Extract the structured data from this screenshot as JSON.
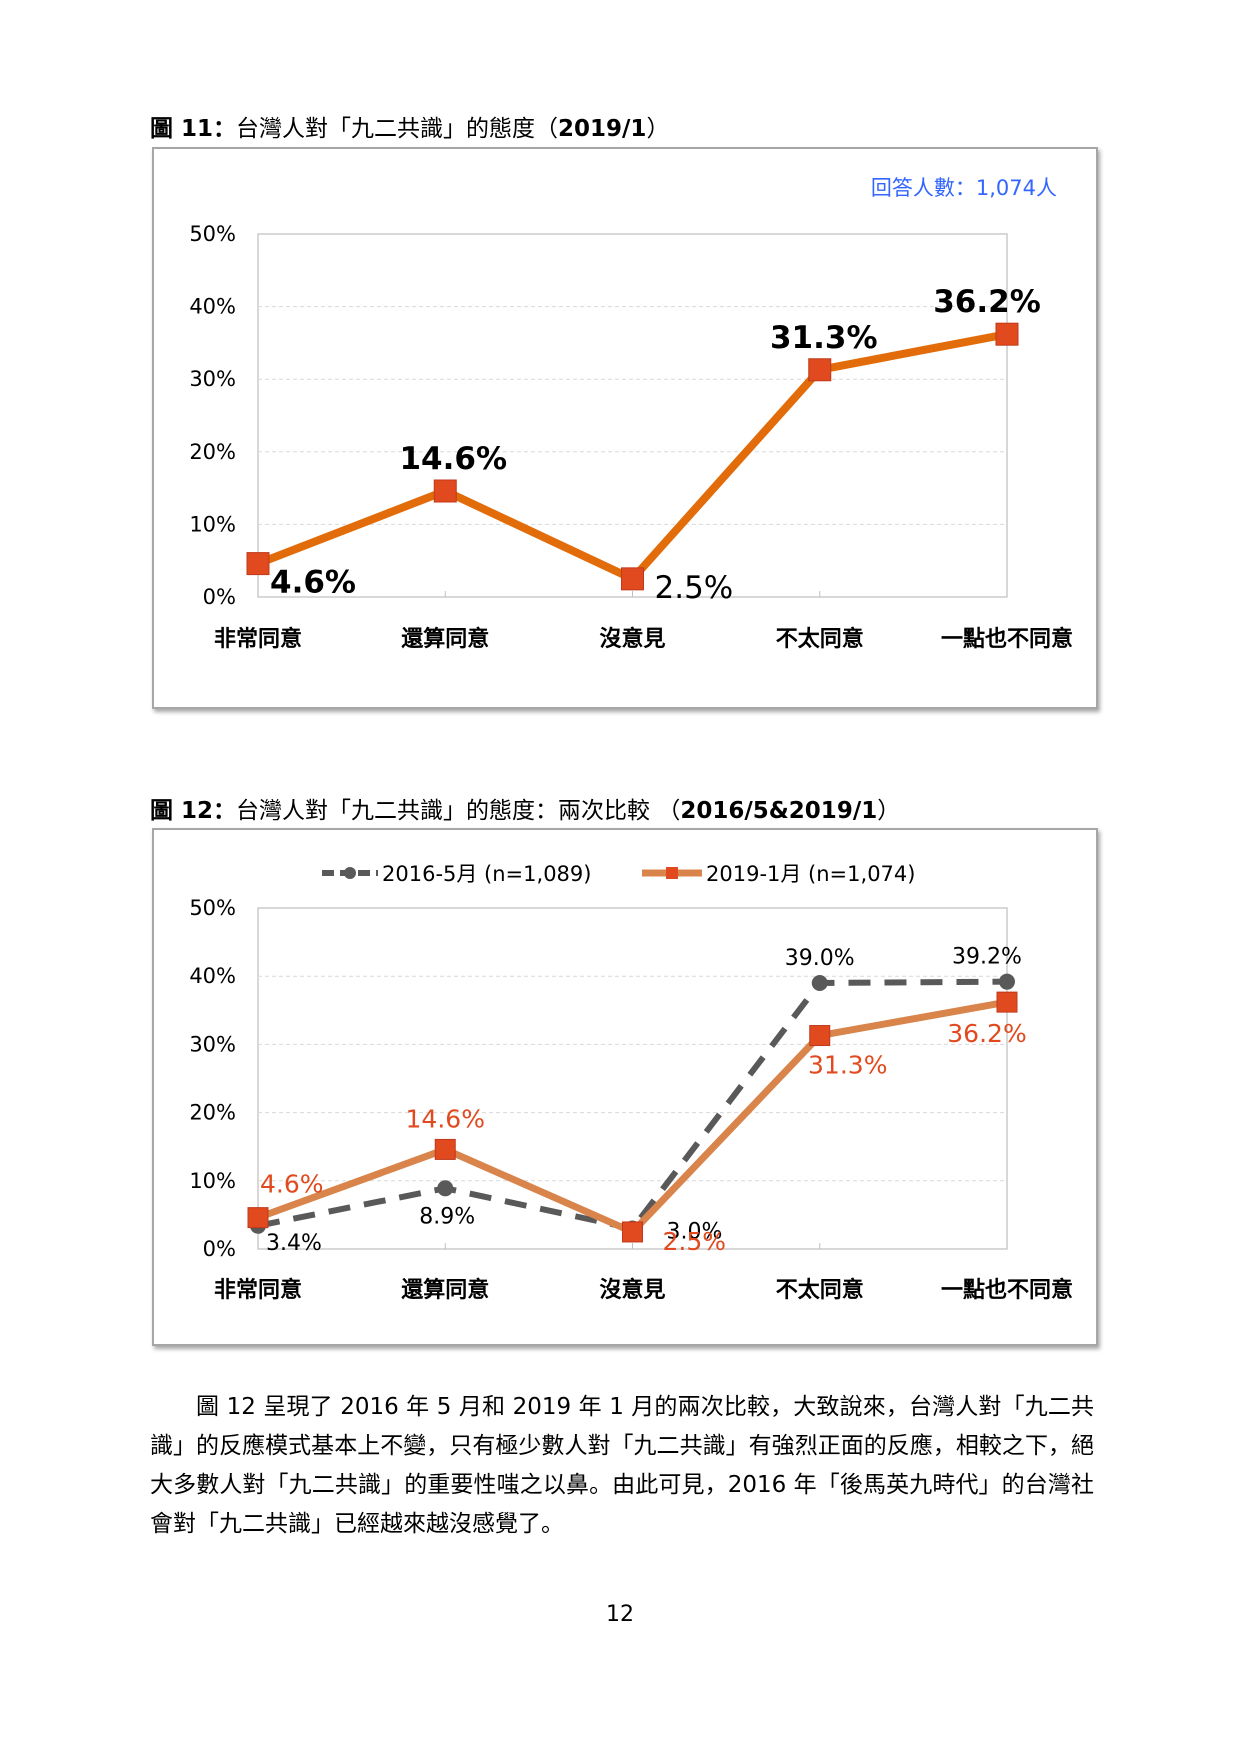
{
  "figure11": {
    "title_bold": "圖 11：",
    "title_text": "台灣人對「九二共識」的態度（",
    "title_date": "2019/1",
    "title_close": "）"
  },
  "figure12": {
    "title_bold": "圖 12：",
    "title_text": "台灣人對「九二共識」的態度：兩次比較 （",
    "title_date": "2016/5&2019/1",
    "title_close": "）"
  },
  "chart_data": [
    {
      "type": "line",
      "annotation": "回答人數：1,074人",
      "categories": [
        "非常同意",
        "還算同意",
        "沒意見",
        "不太同意",
        "一點也不同意"
      ],
      "yticks": [
        "0%",
        "10%",
        "20%",
        "30%",
        "40%",
        "50%"
      ],
      "ylim": [
        0,
        50
      ],
      "grid": true,
      "series": [
        {
          "values": [
            4.6,
            14.6,
            2.5,
            31.3,
            36.2
          ],
          "labels": [
            "4.6%",
            "14.6%",
            "2.5%",
            "31.3%",
            "36.2%"
          ],
          "color": "#e36c0a",
          "marker_color": "#e04a1e"
        }
      ]
    },
    {
      "type": "line",
      "categories": [
        "非常同意",
        "還算同意",
        "沒意見",
        "不太同意",
        "一點也不同意"
      ],
      "yticks": [
        "0%",
        "10%",
        "20%",
        "30%",
        "40%",
        "50%"
      ],
      "ylim": [
        0,
        50
      ],
      "grid": true,
      "legend_position": "top",
      "series": [
        {
          "name": "2016-5月 (n=1,089)",
          "values": [
            3.4,
            8.9,
            3.0,
            39.0,
            39.2
          ],
          "labels": [
            "3.4%",
            "8.9%",
            "3.0%",
            "39.0%",
            "39.2%"
          ],
          "color": "#595959",
          "style": "dashed",
          "marker": "circle"
        },
        {
          "name": "2019-1月 (n=1,074)",
          "values": [
            4.6,
            14.6,
            2.5,
            31.3,
            36.2
          ],
          "labels": [
            "4.6%",
            "14.6%",
            "2.5%",
            "31.3%",
            "36.2%"
          ],
          "color": "#d8844b",
          "marker_color": "#e04a1e",
          "label_color": "#e04a1e",
          "style": "solid",
          "marker": "square"
        }
      ]
    }
  ],
  "paragraph": "圖 12 呈現了 2016 年 5 月和 2019 年 1 月的兩次比較，大致說來，台灣人對「九二共識」的反應模式基本上不變，只有極少數人對「九二共識」有強烈正面的反應，相較之下，絕大多數人對「九二共識」的重要性嗤之以鼻。由此可見，2016 年「後馬英九時代」的台灣社會對「九二共識」已經越來越沒感覺了。",
  "page_number": "12"
}
